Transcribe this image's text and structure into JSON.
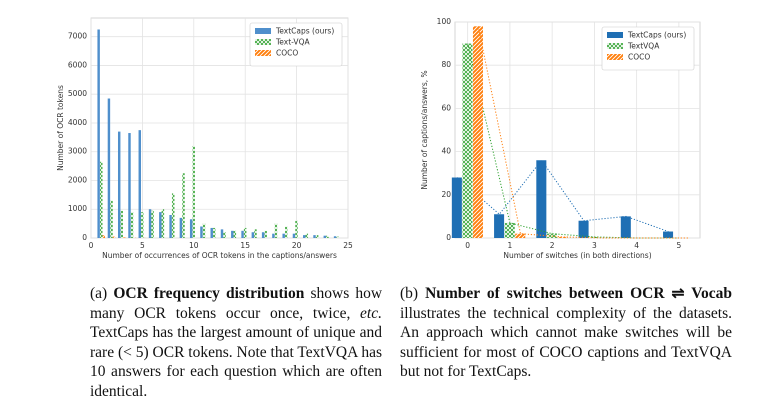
{
  "chart_data": [
    {
      "type": "bar",
      "x": [
        1,
        2,
        3,
        4,
        5,
        6,
        7,
        8,
        9,
        10,
        11,
        12,
        13,
        14,
        15,
        16,
        17,
        18,
        19,
        20,
        21,
        22,
        23,
        24
      ],
      "series": [
        {
          "name": "TextCaps (ours)",
          "color": "#4f8fcc",
          "values": [
            7250,
            4850,
            3700,
            3650,
            3750,
            1000,
            900,
            800,
            700,
            650,
            400,
            350,
            300,
            250,
            250,
            200,
            200,
            150,
            150,
            150,
            100,
            100,
            80,
            60
          ]
        },
        {
          "name": "Text-VQA",
          "color": "#2ca02c",
          "hatch": "cross",
          "values": [
            2650,
            1300,
            950,
            900,
            900,
            950,
            1000,
            1550,
            2250,
            3200,
            500,
            350,
            200,
            250,
            350,
            300,
            250,
            500,
            400,
            600,
            150,
            100,
            80,
            50
          ]
        },
        {
          "name": "COCO",
          "color": "#ff7f0e",
          "hatch": "diagonal",
          "values": [
            100,
            50,
            20,
            10,
            5,
            0,
            0,
            0,
            0,
            0,
            0,
            0,
            0,
            0,
            0,
            0,
            0,
            0,
            0,
            0,
            0,
            0,
            0,
            0
          ]
        }
      ],
      "xlabel": "Number of occurrences of OCR tokens in the captions/answers",
      "ylabel": "Number of OCR tokens",
      "xlim": [
        0,
        25
      ],
      "xticks": [
        0,
        5,
        10,
        15,
        20,
        25
      ],
      "ylim": [
        0,
        7650
      ],
      "yticks": [
        0,
        1000,
        2000,
        3000,
        4000,
        5000,
        6000,
        7000
      ],
      "grid": true,
      "legend": "upper right"
    },
    {
      "type": "bar",
      "x": [
        0,
        1,
        2,
        3,
        4,
        5
      ],
      "series": [
        {
          "name": "TextCaps (ours)",
          "color": "#1f6fb4",
          "values": [
            28,
            11,
            36,
            8,
            10,
            3
          ]
        },
        {
          "name": "TextVQA",
          "color": "#2ca02c",
          "hatch": "cross",
          "values": [
            90,
            7,
            2,
            0.5,
            0,
            0
          ]
        },
        {
          "name": "COCO",
          "color": "#ff7f0e",
          "hatch": "diagonal",
          "values": [
            98,
            2,
            0.5,
            0,
            0,
            0
          ]
        }
      ],
      "xlabel": "Number of switches (in both directions)",
      "ylabel": "Number of captions/answers, %",
      "xlim": [
        -0.3,
        5.5
      ],
      "xticks": [
        0,
        1,
        2,
        3,
        4,
        5
      ],
      "ylim": [
        0,
        100
      ],
      "yticks": [
        0,
        20,
        40,
        60,
        80,
        100
      ],
      "grid": true,
      "legend": "upper right",
      "line_style": "dotted"
    }
  ],
  "captions": [
    {
      "label": "(a)",
      "bold": "OCR frequency distribution",
      "text1": "shows how many OCR tokens occur once, twice,",
      "italic": "etc.",
      "text2": "TextCaps has the largest amount of unique and rare (< 5) OCR tokens. Note that TextVQA has 10 answers for each question which are often identical."
    },
    {
      "label": "(b)",
      "bold": "Number of switches between OCR ⇌ Vocab",
      "text1": "illustrates the technical complexity of the datasets. An approach which cannot make switches will be sufficient for most of COCO captions and TextVQA but not for TextCaps."
    }
  ]
}
